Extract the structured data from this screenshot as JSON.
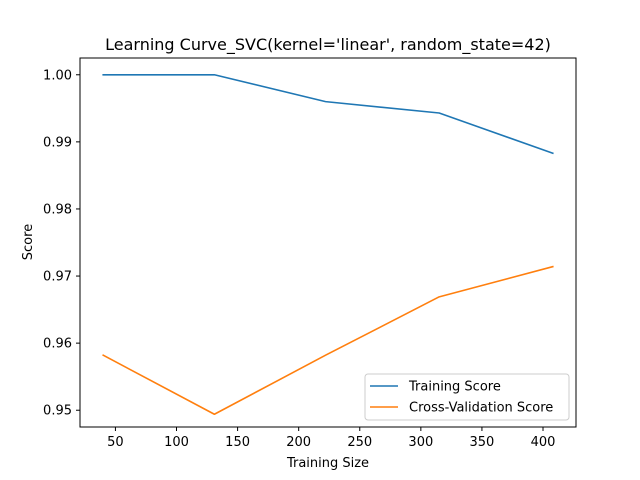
{
  "chart_data": {
    "type": "line",
    "title": "Learning Curve_SVC(kernel='linear', random_state=42)",
    "xlabel": "Training Size",
    "ylabel": "Score",
    "x": [
      40,
      131,
      222,
      315,
      408
    ],
    "xlim": [
      21,
      427
    ],
    "ylim": [
      0.9475,
      1.0025
    ],
    "xticks": [
      50,
      100,
      150,
      200,
      250,
      300,
      350,
      400
    ],
    "yticks": [
      0.95,
      0.96,
      0.97,
      0.98,
      0.99,
      1.0
    ],
    "ytick_labels": [
      "0.95",
      "0.96",
      "0.97",
      "0.98",
      "0.99",
      "1.00"
    ],
    "grid": false,
    "legend_position": "lower-right",
    "series": [
      {
        "name": "Training Score",
        "color": "#1f77b4",
        "values": [
          1.0,
          1.0,
          0.996,
          0.9943,
          0.9883
        ]
      },
      {
        "name": "Cross-Validation Score",
        "color": "#ff7f0e",
        "values": [
          0.9582,
          0.9494,
          0.9582,
          0.9669,
          0.9714
        ]
      }
    ]
  }
}
